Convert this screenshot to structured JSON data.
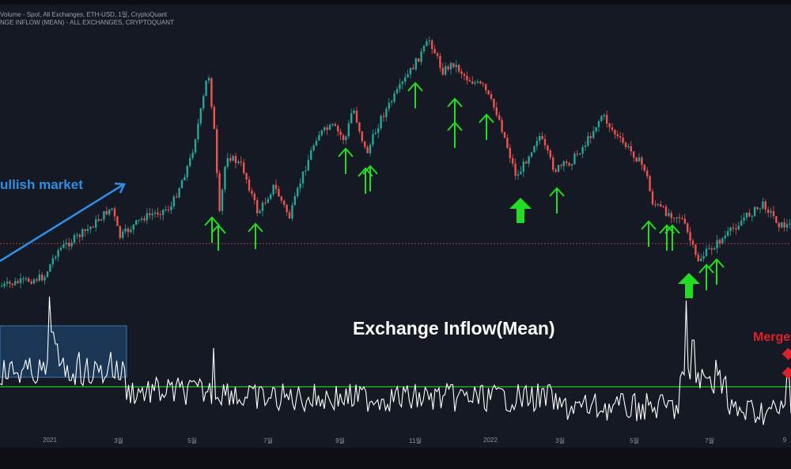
{
  "header": {
    "line1": "Volume - Spot, All Exchanges, ETH-USD, 1일, CryptoQuant",
    "line2": "NGE INFLOW (MEAN) - ALL EXCHANGES, CRYPTOQUANT"
  },
  "annotations": {
    "bullish": "ullish market",
    "inflow_title": "Exchange Inflow(Mean)",
    "merge": "Merge"
  },
  "colors": {
    "background": "#151923",
    "up_candle": "#26a69a",
    "down_candle": "#ef5350",
    "arrow_green": "#22dd22",
    "bullish_blue": "#2f8ee6",
    "threshold_line": "#22cc22",
    "inflow_line": "#ffffff",
    "merge_red": "#e0202a"
  },
  "axis": {
    "ticks": [
      "2021",
      "3월",
      "5월",
      "7월",
      "9월",
      "11월",
      "2022",
      "3월",
      "5월",
      "7월",
      "9"
    ]
  },
  "chart_data": {
    "type": "line",
    "series": []
  }
}
